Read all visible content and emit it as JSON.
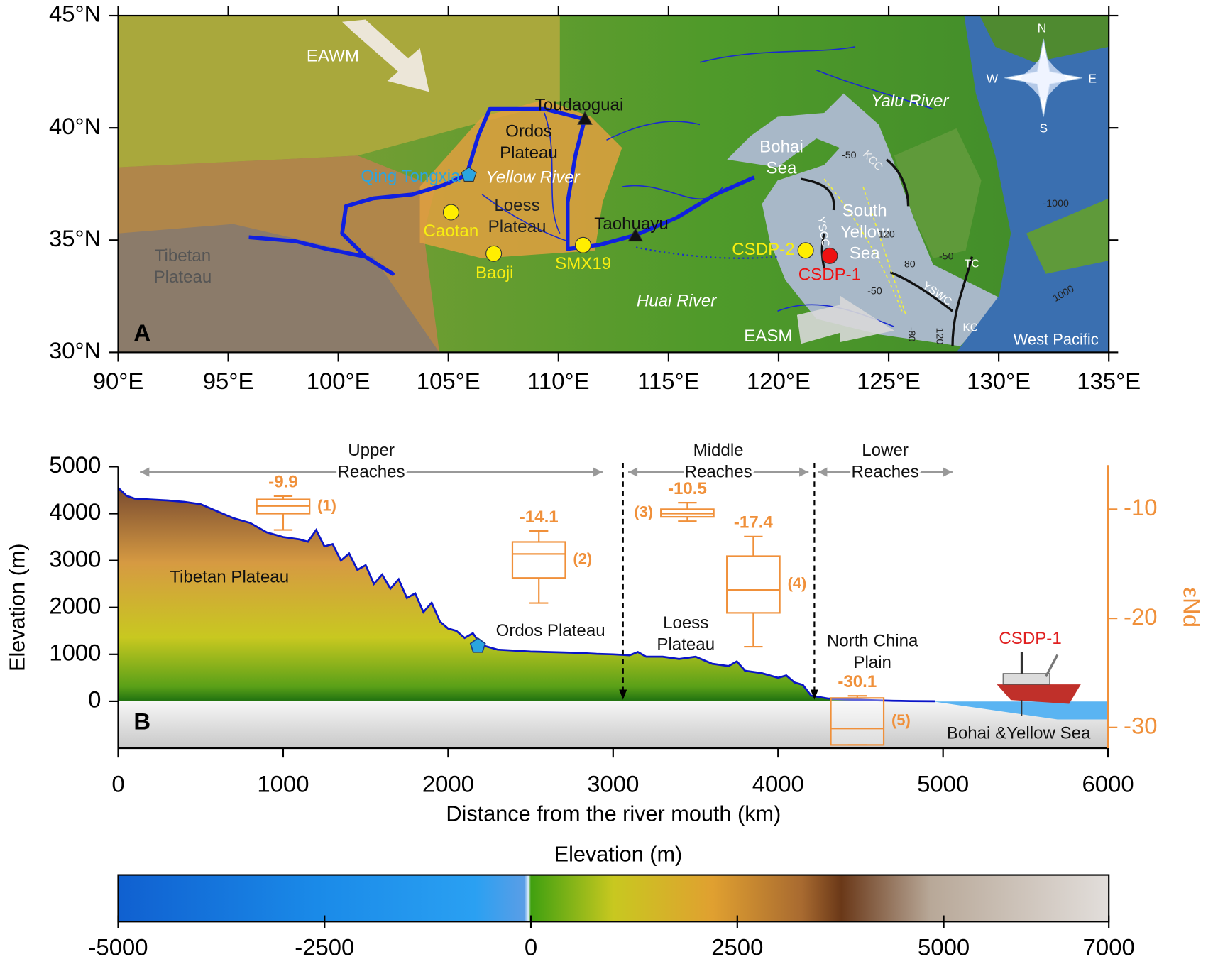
{
  "chart_data": [
    {
      "type": "map",
      "panel_label": "A",
      "xlim": [
        90,
        135
      ],
      "ylim": [
        30,
        45
      ],
      "xticks": [
        {
          "value": 90,
          "label": "90°E"
        },
        {
          "value": 95,
          "label": "95°E"
        },
        {
          "value": 100,
          "label": "100°E"
        },
        {
          "value": 105,
          "label": "105°E"
        },
        {
          "value": 110,
          "label": "110°E"
        },
        {
          "value": 115,
          "label": "115°E"
        },
        {
          "value": 120,
          "label": "120°E"
        },
        {
          "value": 125,
          "label": "125°E"
        },
        {
          "value": 130,
          "label": "130°E"
        },
        {
          "value": 135,
          "label": "135°E"
        }
      ],
      "yticks": [
        {
          "value": 30,
          "label": "30°N"
        },
        {
          "value": 35,
          "label": "35°N"
        },
        {
          "value": 40,
          "label": "40°N"
        },
        {
          "value": 45,
          "label": "45°N"
        }
      ],
      "points": [
        {
          "name": "Qing Tongxia",
          "lon": 105.93,
          "lat": 37.9,
          "color": "#2aa5e0",
          "marker": "pentagon"
        },
        {
          "name": "Toudaoguai",
          "lon": 111.2,
          "lat": 40.4,
          "color": "#111111",
          "marker": "triangle"
        },
        {
          "name": "Caotan",
          "lon": 105.12,
          "lat": 36.24,
          "color": "#ffee00",
          "marker": "circle"
        },
        {
          "name": "Baoji",
          "lon": 107.06,
          "lat": 34.4,
          "color": "#ffee00",
          "marker": "circle"
        },
        {
          "name": "SMX19",
          "lon": 111.12,
          "lat": 34.78,
          "color": "#ffee00",
          "marker": "circle"
        },
        {
          "name": "Taohuayu",
          "lon": 113.5,
          "lat": 35.2,
          "color": "#111111",
          "marker": "triangle"
        },
        {
          "name": "CSDP-2",
          "lon": 121.23,
          "lat": 34.54,
          "color": "#ffee00",
          "marker": "circle"
        },
        {
          "name": "CSDP-1",
          "lon": 122.32,
          "lat": 34.3,
          "color": "#ee1111",
          "marker": "circle"
        }
      ],
      "labels": [
        {
          "lines": [
            "EAWM"
          ],
          "color": "#ffffff"
        },
        {
          "lines": [
            "Ordos",
            "Plateau"
          ],
          "color": "#111111"
        },
        {
          "lines": [
            "Yellow River"
          ],
          "color": "#ffffff",
          "style": "italic"
        },
        {
          "lines": [
            "Loess",
            "Plateau"
          ],
          "color": "#222222"
        },
        {
          "lines": [
            "Tibetan",
            "Plateau"
          ],
          "color": "#555555"
        },
        {
          "lines": [
            "Bohai",
            "Sea"
          ],
          "color": "#ffffff"
        },
        {
          "lines": [
            "South",
            "Yellow",
            "Sea"
          ],
          "color": "#ffffff"
        },
        {
          "lines": [
            "Yalu River"
          ],
          "color": "#ffffff",
          "style": "italic"
        },
        {
          "lines": [
            "Huai River"
          ],
          "color": "#ffffff",
          "style": "italic"
        },
        {
          "lines": [
            "EASM"
          ],
          "color": "#ffffff"
        },
        {
          "lines": [
            "West Pacific"
          ],
          "color": "#ffffff"
        },
        {
          "lines": [
            "KCC"
          ],
          "color": "#eeeeee"
        },
        {
          "lines": [
            "YSCC"
          ],
          "color": "#ffffff"
        },
        {
          "lines": [
            "YSWC"
          ],
          "color": "#ffffff"
        },
        {
          "lines": [
            "TC"
          ],
          "color": "#ffffff"
        },
        {
          "lines": [
            "KC"
          ],
          "color": "#ffffff"
        },
        {
          "lines": [
            "-50"
          ],
          "color": "#222222"
        },
        {
          "lines": [
            "-1000"
          ],
          "color": "#222222"
        },
        {
          "lines": [
            "120"
          ],
          "color": "#222222"
        },
        {
          "lines": [
            "80"
          ],
          "color": "#222222"
        },
        {
          "lines": [
            "-50"
          ],
          "color": "#222222"
        },
        {
          "lines": [
            "-50"
          ],
          "color": "#222222"
        },
        {
          "lines": [
            "1000"
          ],
          "color": "#222222"
        },
        {
          "lines": [
            "-80"
          ],
          "color": "#222222"
        },
        {
          "lines": [
            "120"
          ],
          "color": "#222222"
        },
        {
          "lines": [
            "N"
          ],
          "color": "#ffffff"
        },
        {
          "lines": [
            "S"
          ],
          "color": "#ffffff"
        },
        {
          "lines": [
            "W"
          ],
          "color": "#ffffff"
        },
        {
          "lines": [
            "E"
          ],
          "color": "#ffffff"
        }
      ]
    },
    {
      "type": "profile",
      "panel_label": "B",
      "xlabel": "Distance from the river mouth (km)",
      "ylabel": "Elevation (m)",
      "y2label": "εNd",
      "xlim": [
        0,
        6000
      ],
      "ylim": [
        -1000,
        5000
      ],
      "y2lim": [
        -31.9,
        -6.1
      ],
      "xticks": [
        0,
        1000,
        2000,
        3000,
        4000,
        5000,
        6000
      ],
      "yticks": [
        0,
        1000,
        2000,
        3000,
        4000,
        5000
      ],
      "y2ticks": [
        -10,
        -20,
        -30
      ],
      "profile": {
        "color": "#0a14c8",
        "x": [
          0,
          50,
          100,
          200,
          300,
          400,
          500,
          600,
          700,
          800,
          900,
          1000,
          1100,
          1150,
          1200,
          1250,
          1300,
          1350,
          1400,
          1450,
          1500,
          1550,
          1600,
          1650,
          1700,
          1750,
          1800,
          1850,
          1900,
          1950,
          2000,
          2050,
          2100,
          2150,
          2200,
          2300,
          2400,
          2500,
          2600,
          2700,
          2800,
          2900,
          3000,
          3100,
          3150,
          3200,
          3300,
          3400,
          3500,
          3600,
          3700,
          3750,
          3800,
          3900,
          4000,
          4050,
          4100,
          4150,
          4200,
          4300,
          4400,
          4500,
          4600,
          4700,
          4800,
          4950
        ],
        "values": [
          4550,
          4380,
          4320,
          4300,
          4280,
          4250,
          4200,
          4050,
          3900,
          3800,
          3600,
          3500,
          3450,
          3400,
          3650,
          3300,
          3350,
          3000,
          3150,
          2800,
          2900,
          2500,
          2700,
          2400,
          2600,
          2200,
          2300,
          1900,
          2100,
          1700,
          1550,
          1500,
          1350,
          1450,
          1200,
          1100,
          1080,
          1060,
          1050,
          1040,
          1030,
          1010,
          1000,
          980,
          1050,
          950,
          950,
          900,
          950,
          800,
          750,
          850,
          650,
          600,
          500,
          550,
          400,
          350,
          120,
          60,
          40,
          30,
          20,
          10,
          5,
          0
        ]
      },
      "box_color": "#f0903a",
      "boxes": [
        {
          "name": "(1)",
          "x": 1000,
          "low": -11.9,
          "q1": -10.4,
          "median": -9.7,
          "q3": -9.1,
          "high": -8.8,
          "mean": -9.9
        },
        {
          "name": "(2)",
          "x": 2550,
          "low": -18.6,
          "q1": -16.3,
          "median": -14.1,
          "q3": -13.0,
          "high": -12.0,
          "mean": -14.1
        },
        {
          "name": "(3)",
          "x": 3450,
          "low": -11.1,
          "q1": -10.7,
          "median": -10.4,
          "q3": -10.0,
          "high": -9.4,
          "mean": -10.5
        },
        {
          "name": "(4)",
          "x": 3850,
          "low": -22.6,
          "q1": -19.5,
          "median": -17.4,
          "q3": -14.3,
          "high": -12.5,
          "mean": -17.4
        },
        {
          "name": "(5)",
          "x": 4480,
          "low": -31.6,
          "q1": -31.6,
          "median": -30.1,
          "q3": -27.3,
          "high": -27.1,
          "mean": -30.1
        }
      ],
      "reaches": [
        {
          "lines": [
            "Upper",
            "Reaches"
          ],
          "from": 132,
          "to": 2936
        },
        {
          "lines": [
            "Middle",
            "Reaches"
          ],
          "from": 3091,
          "to": 4185
        },
        {
          "lines": [
            "Lower",
            "Reaches"
          ],
          "from": 4241,
          "to": 5057
        }
      ],
      "dividers": [
        3060,
        4220
      ],
      "site_marker": {
        "distance": 2180,
        "elevation": 1180,
        "color": "#2aa5e0"
      },
      "annotations": [
        {
          "lines": [
            "Tibetan Plateau"
          ],
          "color": "#111111"
        },
        {
          "lines": [
            "Ordos Plateau"
          ],
          "color": "#111111"
        },
        {
          "lines": [
            "Loess",
            "Plateau"
          ],
          "color": "#111111"
        },
        {
          "lines": [
            "North China",
            "Plain"
          ],
          "color": "#111111"
        },
        {
          "lines": [
            "CSDP-1"
          ],
          "color": "#e02020"
        },
        {
          "lines": [
            "Bohai &Yellow Sea"
          ],
          "color": "#111111"
        }
      ]
    },
    {
      "type": "colorbar",
      "title": "Elevation (m)",
      "xlim": [
        -5000,
        7000
      ],
      "xticks": [
        -5000,
        -2500,
        0,
        2500,
        5000,
        7000
      ]
    }
  ]
}
